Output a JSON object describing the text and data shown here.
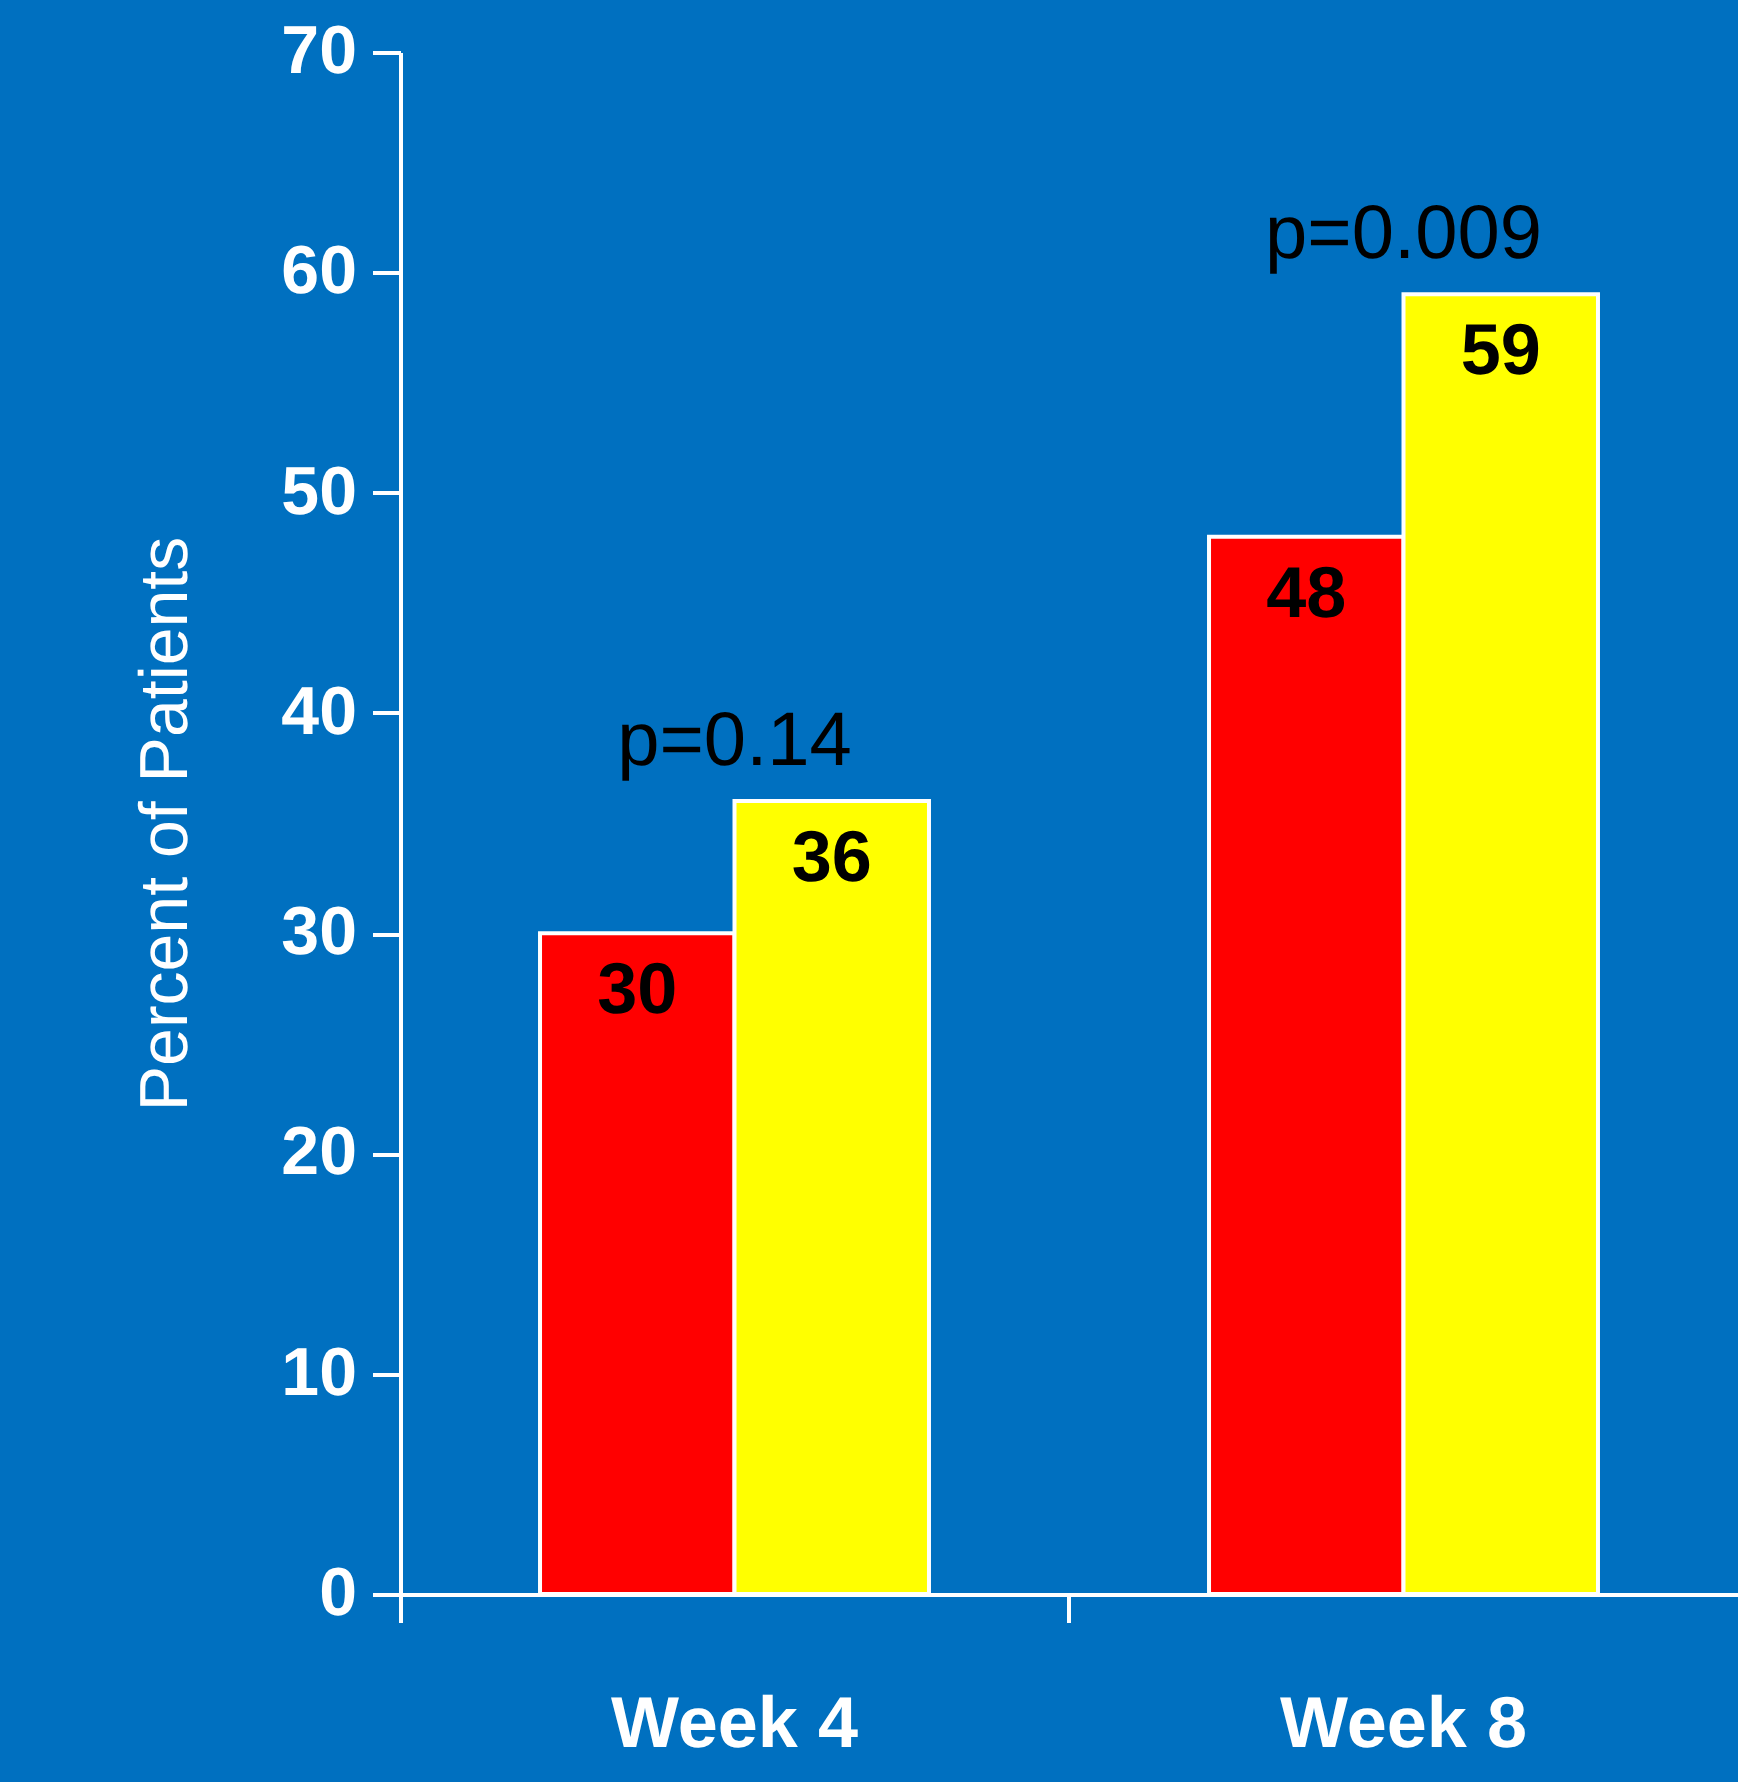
{
  "chart_data": {
    "type": "bar",
    "ylabel": "Percent of Patients",
    "categories": [
      "Week 4",
      "Week 8"
    ],
    "series": [
      {
        "color": "#ff0000",
        "values": [
          30,
          48
        ]
      },
      {
        "color": "#ffff00",
        "values": [
          36,
          59
        ]
      }
    ],
    "ylim": [
      0,
      70
    ],
    "yticks": [
      0,
      10,
      20,
      30,
      40,
      50,
      60,
      70
    ],
    "data_labels": true,
    "grid": false,
    "legend": false,
    "annotations": [
      {
        "text": "p=0.14",
        "x": "Week 4",
        "y": 36
      },
      {
        "text": "p=0.009",
        "x": "Week 8",
        "y": 59
      }
    ]
  }
}
